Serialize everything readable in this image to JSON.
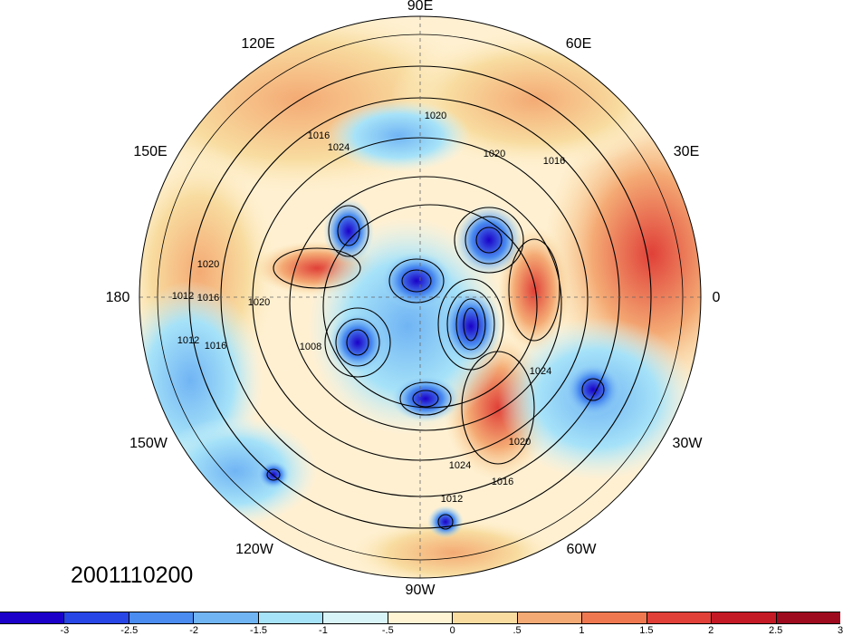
{
  "map": {
    "longitude_labels": [
      "90E",
      "60E",
      "30E",
      "0",
      "30W",
      "60W",
      "90W",
      "120W",
      "150W",
      "180",
      "150E",
      "120E"
    ],
    "timestamp": "2001110200",
    "contour_labels": [
      "1020",
      "1016",
      "1024",
      "1020",
      "1016",
      "1020",
      "1020",
      "1012",
      "1016",
      "1016",
      "1012",
      "1008",
      "1024",
      "1020",
      "1016",
      "1012",
      "1024"
    ]
  },
  "colorbar": {
    "colors": [
      "#1a00c8",
      "#2846e6",
      "#4a8cf0",
      "#70b4f4",
      "#a6e2f8",
      "#d8f4f8",
      "#fff4d4",
      "#f8dca0",
      "#f4aa74",
      "#f07850",
      "#e04038",
      "#c41a26",
      "#9e0a1e"
    ],
    "ticks": [
      "-3",
      "-2.5",
      "-2",
      "-1.5",
      "-1",
      "-.5",
      "0",
      ".5",
      "1",
      "1.5",
      "2",
      "2.5",
      "3"
    ]
  }
}
